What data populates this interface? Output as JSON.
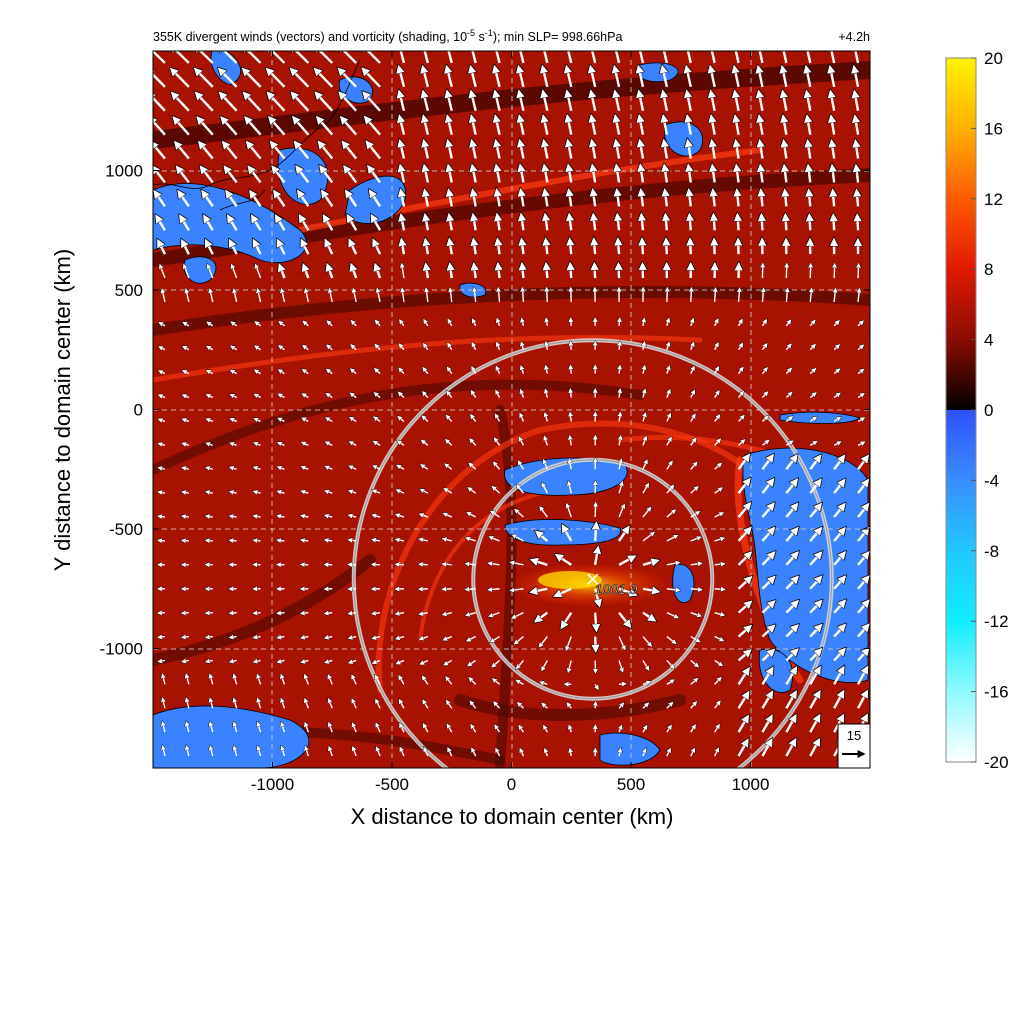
{
  "chart_data": {
    "type": "heatmap",
    "title_left": "355K divergent winds (vectors) and vorticity (shading, 10",
    "title_exp1": "-5",
    "title_mid": " s",
    "title_exp2": "-1",
    "title_right": "); min SLP= 998.66hPa",
    "time_label": "+4.2h",
    "xlabel": "X distance to domain center (km)",
    "ylabel": "Y distance to domain center (km)",
    "xlim": [
      -1500,
      1500
    ],
    "ylim": [
      -1500,
      1500
    ],
    "xticks": [
      -1000,
      -500,
      0,
      500,
      1000
    ],
    "yticks": [
      1000,
      500,
      0,
      -500,
      -1000
    ],
    "grid": true,
    "colorbar": {
      "ticks": [
        20,
        16,
        12,
        8,
        4,
        0,
        -4,
        -8,
        -12,
        -16,
        -20
      ],
      "range": [
        -20,
        20
      ]
    },
    "center_marker": {
      "x": 340,
      "y": -710,
      "label": "1001.9"
    },
    "rings": [
      {
        "cx": 340,
        "cy": -710,
        "r": 500
      },
      {
        "cx": 340,
        "cy": -710,
        "r": 1000
      }
    ],
    "reference_vector": {
      "label": "15"
    },
    "colors": {
      "positive_low": "#000000",
      "positive_mid": "#b01000",
      "positive_high": "#ffe800",
      "negative_mid": "#3a7cff",
      "negative_high": "#eefcff"
    }
  }
}
